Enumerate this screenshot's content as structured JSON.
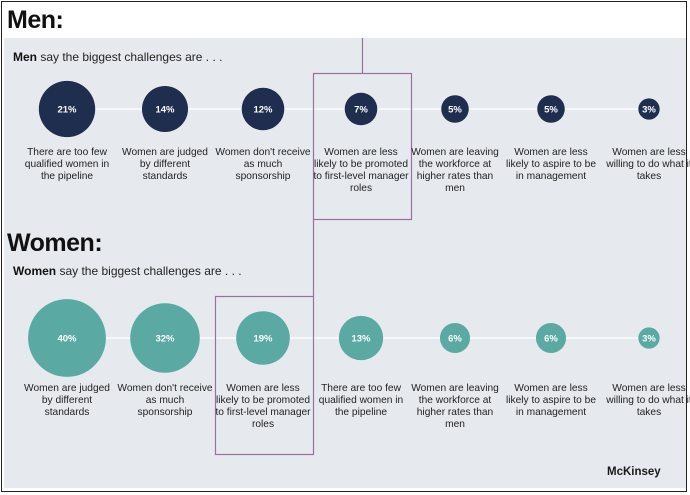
{
  "colors": {
    "men_bubble": "#1f2d4e",
    "women_bubble": "#5aaaa3",
    "highlight_box": "#9b6e9e",
    "connector": "#ffffff",
    "panel_bg": "#e6eaee"
  },
  "men": {
    "heading": "Men:",
    "subtitle_bold": "Men",
    "subtitle_rest": " say the biggest challenges are . . ."
  },
  "women": {
    "heading": "Women:",
    "subtitle_bold": "Women",
    "subtitle_rest": " say the biggest challenges are . . ."
  },
  "brand": "McKinsey",
  "chart_data": [
    {
      "type": "bubble",
      "title": "Men say the biggest challenges are . . .",
      "unit": "%",
      "highlight_index": 3,
      "points": [
        {
          "label": "There are too few qualified women in the pipeline",
          "value": 21,
          "display": "21%"
        },
        {
          "label": "Women are judged by different standards",
          "value": 14,
          "display": "14%"
        },
        {
          "label": "Women don't receive as much sponsorship",
          "value": 12,
          "display": "12%"
        },
        {
          "label": "Women are less likely to be promoted to first-level manager roles",
          "value": 7,
          "display": "7%"
        },
        {
          "label": "Women are leaving the workforce at higher rates than men",
          "value": 5,
          "display": "5%"
        },
        {
          "label": "Women are less likely to aspire to be in management",
          "value": 5,
          "display": "5%"
        },
        {
          "label": "Women are less willing to do what it takes",
          "value": 3,
          "display": "3%"
        }
      ]
    },
    {
      "type": "bubble",
      "title": "Women say the biggest challenges are . . .",
      "unit": "%",
      "highlight_index": 2,
      "points": [
        {
          "label": "Women are judged by different standards",
          "value": 40,
          "display": "40%"
        },
        {
          "label": "Women don't receive as much sponsorship",
          "value": 32,
          "display": "32%"
        },
        {
          "label": "Women are less likely to be promoted to first-level manager roles",
          "value": 19,
          "display": "19%"
        },
        {
          "label": "There are too few qualified women in the pipeline",
          "value": 13,
          "display": "13%"
        },
        {
          "label": "Women are leaving the workforce at higher rates than men",
          "value": 6,
          "display": "6%"
        },
        {
          "label": "Women are less likely to aspire to be in management",
          "value": 6,
          "display": "6%"
        },
        {
          "label": "Women are less willing to do what it takes",
          "value": 3,
          "display": "3%"
        }
      ]
    }
  ]
}
